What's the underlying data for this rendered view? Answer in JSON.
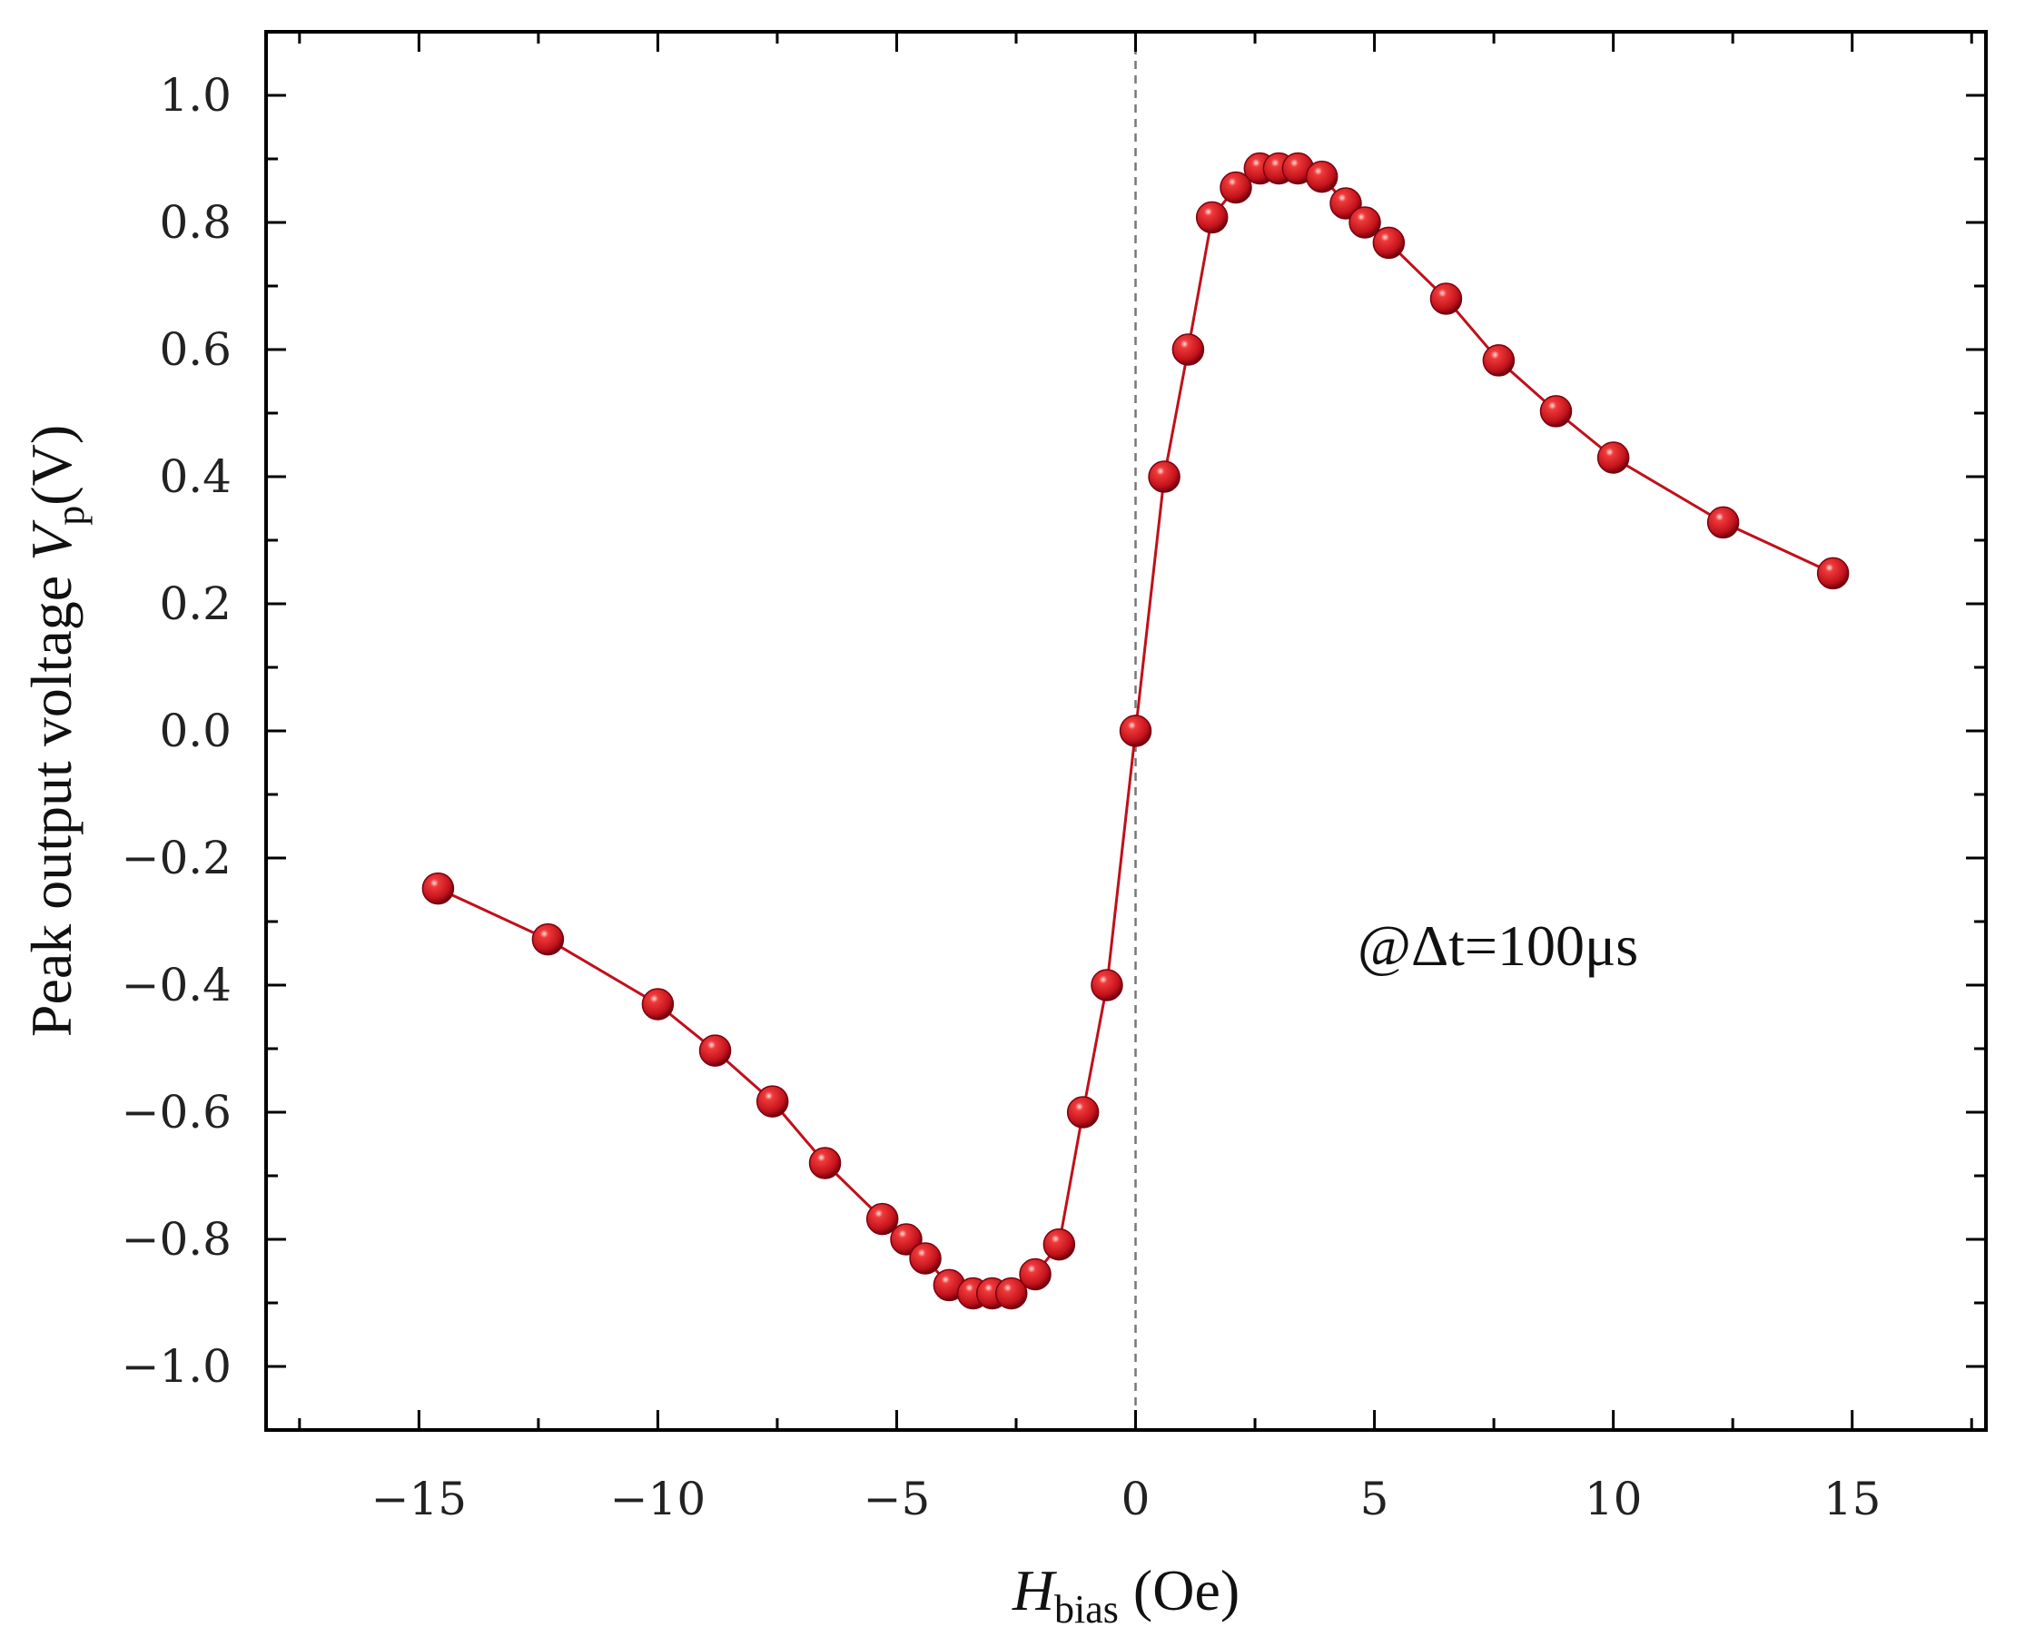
{
  "chart_data": {
    "type": "scatter",
    "title": "",
    "xlabel": {
      "main": "H",
      "sub": "bias",
      "unit": " (Oe)"
    },
    "ylabel": {
      "prefix": "Peak output voltage ",
      "var": "V",
      "sub": "p",
      "unit": "(V)"
    },
    "xlim": [
      -18.2,
      17.8
    ],
    "ylim": [
      -1.1,
      1.1
    ],
    "xticks": [
      -15,
      -10,
      -5,
      0,
      5,
      10,
      15
    ],
    "xtick_labels": [
      "−15",
      "−10",
      "−5",
      "0",
      "5",
      "10",
      "15"
    ],
    "yticks": [
      1.0,
      0.8,
      0.6,
      0.4,
      0.2,
      0.0,
      -0.2,
      -0.4,
      -0.6,
      -0.8,
      -1.0
    ],
    "ytick_labels": [
      "1.0",
      "0.8",
      "0.6",
      "0.4",
      "0.2",
      "0.0",
      "−0.2",
      "−0.4",
      "−0.6",
      "−0.8",
      "−1.0"
    ],
    "reference_line": {
      "x": 0,
      "style": "dashed"
    },
    "annotation": "@Δt=100μs",
    "series": [
      {
        "name": "Vp",
        "color": "#c0101a",
        "x": [
          -14.6,
          -12.3,
          -10.0,
          -8.8,
          -7.6,
          -6.5,
          -5.3,
          -4.8,
          -4.4,
          -3.9,
          -3.4,
          -3.0,
          -2.6,
          -2.1,
          -1.6,
          -1.1,
          -0.6,
          0.0,
          0.6,
          1.1,
          1.6,
          2.1,
          2.6,
          3.0,
          3.4,
          3.9,
          4.4,
          4.8,
          5.3,
          6.5,
          7.6,
          8.8,
          10.0,
          12.3,
          14.6
        ],
        "y": [
          -0.248,
          -0.328,
          -0.43,
          -0.503,
          -0.583,
          -0.68,
          -0.768,
          -0.8,
          -0.83,
          -0.872,
          -0.885,
          -0.885,
          -0.885,
          -0.855,
          -0.808,
          -0.6,
          -0.4,
          0.0,
          0.4,
          0.6,
          0.808,
          0.855,
          0.885,
          0.885,
          0.885,
          0.872,
          0.83,
          0.8,
          0.768,
          0.68,
          0.583,
          0.503,
          0.43,
          0.328,
          0.248
        ]
      }
    ]
  }
}
